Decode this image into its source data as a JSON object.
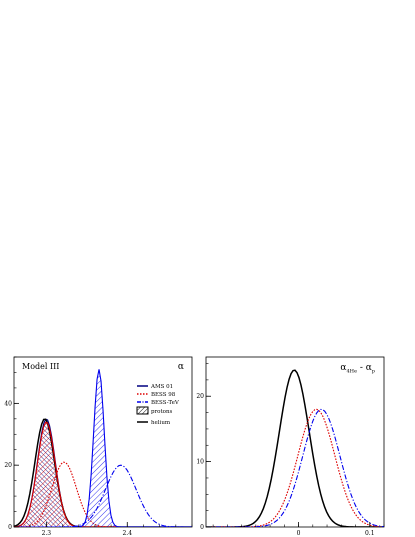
{
  "figure": {
    "title": ""
  },
  "chart_data": [
    {
      "type": "line",
      "panel_label": "Model III",
      "xlabel": "α",
      "xlim": [
        2.26,
        2.48
      ],
      "ylim": [
        0,
        55
      ],
      "xticks": [
        {
          "value": 2.3,
          "label": "2.3"
        },
        {
          "value": 2.4,
          "label": "2.4"
        }
      ],
      "yticks": [
        {
          "value": 0,
          "label": "0"
        },
        {
          "value": 20,
          "label": "20"
        },
        {
          "value": 40,
          "label": "40"
        }
      ],
      "legend": {
        "position": "top-right",
        "entries": [
          {
            "label": "AMS 01",
            "style": "solid",
            "color": "#000080"
          },
          {
            "label": "BESS 98",
            "style": "dotted",
            "color": "#dd0000"
          },
          {
            "label": "BESS-TeV",
            "style": "dashdot",
            "color": "#0000ee"
          },
          {
            "label": "protons",
            "style": "hatched",
            "color": "#000000"
          },
          {
            "label": "helium",
            "style": "solid",
            "color": "#000000"
          }
        ]
      },
      "series": [
        {
          "name": "AMS 01 protons",
          "color": "#000080",
          "style": "solid",
          "hatched": true,
          "mean": 2.3,
          "sigma": 0.011,
          "peak": 35
        },
        {
          "name": "AMS 01 helium",
          "color": "#000000",
          "style": "solid",
          "hatched": false,
          "mean": 2.298,
          "sigma": 0.012,
          "peak": 35
        },
        {
          "name": "BESS 98 protons",
          "color": "#dd0000",
          "style": "solid",
          "hatched": true,
          "mean": 2.3,
          "sigma": 0.011,
          "peak": 34
        },
        {
          "name": "BESS 98 helium",
          "color": "#dd0000",
          "style": "dotted",
          "hatched": false,
          "mean": 2.322,
          "sigma": 0.015,
          "peak": 21
        },
        {
          "name": "BESS-TeV protons",
          "color": "#0000ee",
          "style": "solid",
          "hatched": true,
          "mean": 2.365,
          "sigma": 0.0065,
          "peak": 51
        },
        {
          "name": "BESS-TeV helium",
          "color": "#0000ee",
          "style": "dashdot",
          "hatched": false,
          "mean": 2.392,
          "sigma": 0.019,
          "peak": 20
        }
      ]
    },
    {
      "type": "line",
      "xlabel": "α_4He - α_p",
      "xlabel_main": "α",
      "xlabel_sub1": "4He",
      "xlabel_mid": " - α",
      "xlabel_sub2": "p",
      "xlim": [
        -0.13,
        0.12
      ],
      "ylim": [
        0,
        26
      ],
      "xticks": [
        {
          "value": 0,
          "label": "0"
        },
        {
          "value": 0.1,
          "label": "0.1"
        }
      ],
      "yticks": [
        {
          "value": 0,
          "label": "0"
        },
        {
          "value": 10,
          "label": "10"
        },
        {
          "value": 20,
          "label": "20"
        }
      ],
      "series": [
        {
          "name": "AMS 01",
          "color": "#000000",
          "style": "solid",
          "mean": -0.006,
          "sigma": 0.021,
          "peak": 24
        },
        {
          "name": "BESS 98",
          "color": "#dd0000",
          "style": "dotted",
          "mean": 0.025,
          "sigma": 0.026,
          "peak": 18
        },
        {
          "name": "BESS-TeV",
          "color": "#0000ee",
          "style": "dashdot",
          "mean": 0.032,
          "sigma": 0.026,
          "peak": 18
        }
      ]
    }
  ]
}
